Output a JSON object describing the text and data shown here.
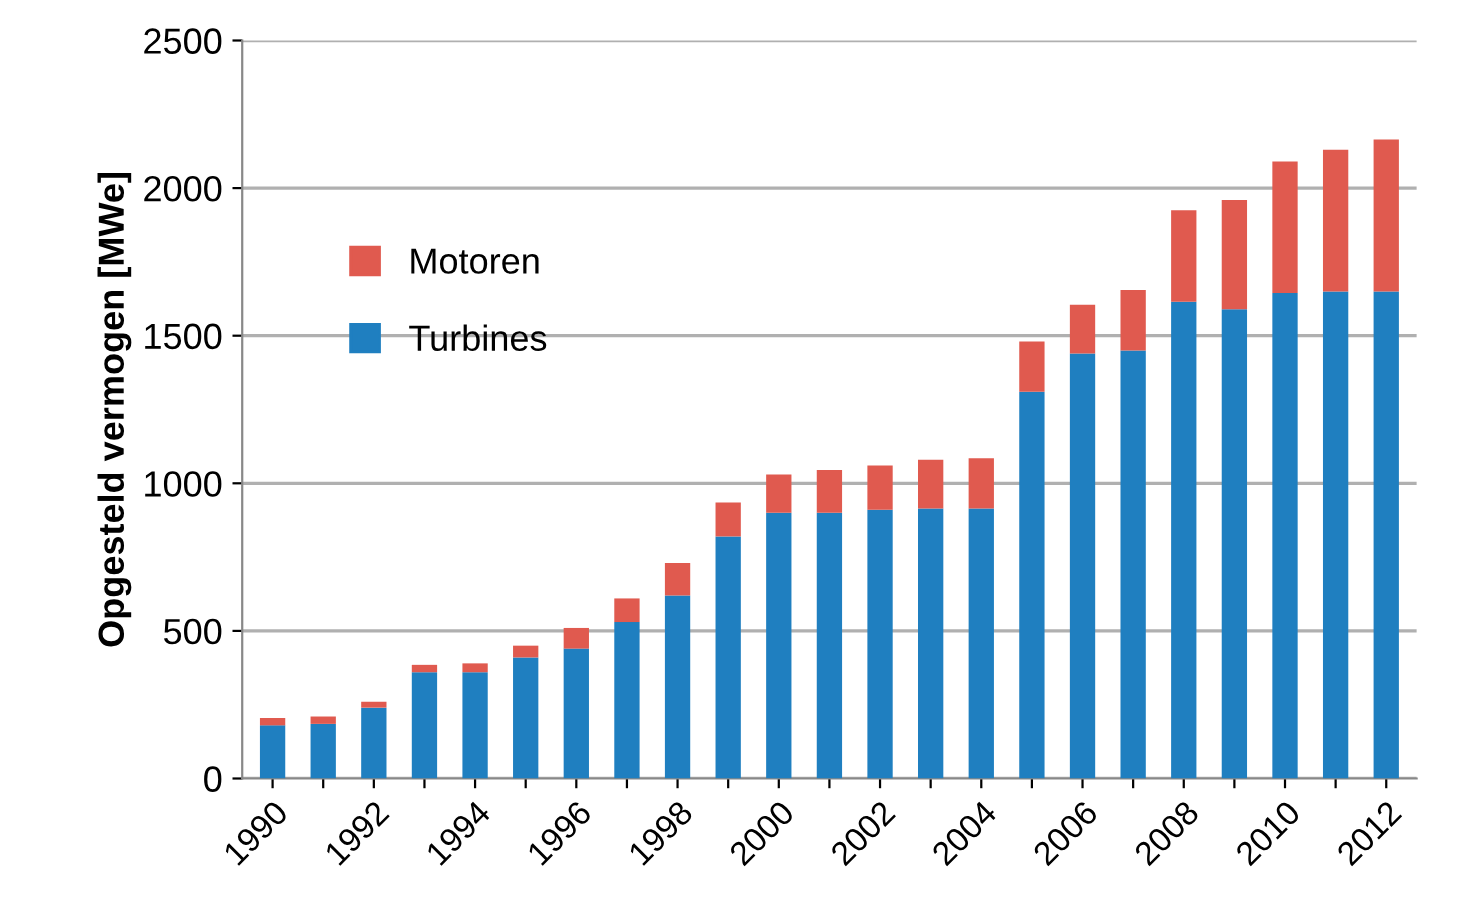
{
  "chart_data": {
    "type": "bar",
    "stacked": true,
    "ylabel": "Opgesteld vermogen [MWe]",
    "categories": [
      "1990",
      null,
      "1992",
      null,
      "1994",
      null,
      "1996",
      null,
      "1998",
      null,
      "2000",
      null,
      "2002",
      null,
      "2004",
      null,
      "2006",
      null,
      "2008",
      null,
      "2010",
      null,
      "2012"
    ],
    "series": [
      {
        "name": "Turbines",
        "color": "#1f7fc0",
        "values": [
          180,
          185,
          240,
          360,
          360,
          410,
          440,
          530,
          620,
          820,
          900,
          900,
          910,
          915,
          915,
          1310,
          1440,
          1450,
          1615,
          1590,
          1645,
          1650,
          1650
        ]
      },
      {
        "name": "Motoren",
        "color": "#e05a4f",
        "values": [
          25,
          25,
          20,
          25,
          30,
          40,
          70,
          80,
          110,
          115,
          130,
          145,
          150,
          165,
          170,
          170,
          165,
          205,
          310,
          370,
          445,
          480,
          515
        ]
      }
    ],
    "ylim": [
      0,
      2500
    ],
    "yticks": [
      0,
      500,
      1000,
      1500,
      2000,
      2500
    ],
    "grid": "y",
    "legend": "top left"
  }
}
